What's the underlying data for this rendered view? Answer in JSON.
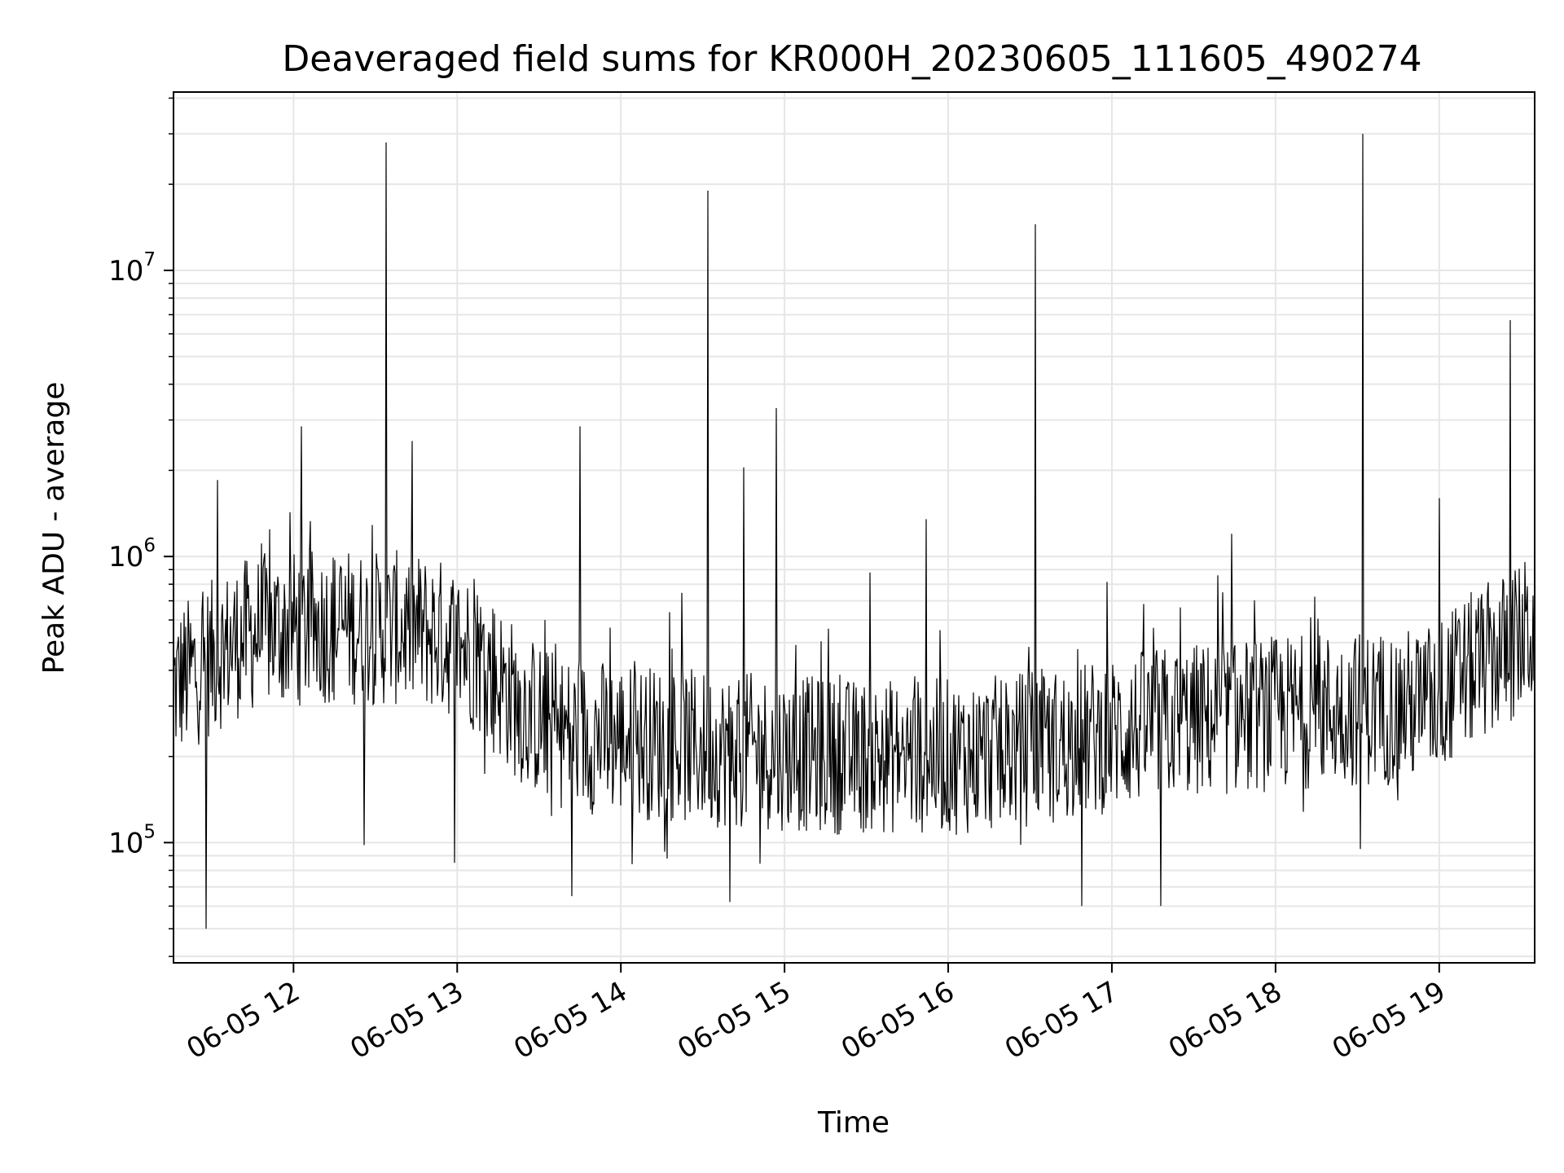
{
  "chart_data": {
    "type": "line",
    "title": "Deaveraged field sums for KR000H_20230605_111605_490274",
    "xlabel": "Time",
    "ylabel": "Peak ADU - average",
    "yscale": "log",
    "grid": true,
    "legend": "none",
    "line_color": "#000000",
    "grid_color": "#e6e6e6",
    "xlim": [
      "2023-06-05 11:16",
      "2023-06-05 19:35"
    ],
    "ylim": [
      38000,
      42000000
    ],
    "x_ticks": [
      {
        "label": "06-05 12",
        "value": "2023-06-05 12:00"
      },
      {
        "label": "06-05 13",
        "value": "2023-06-05 13:00"
      },
      {
        "label": "06-05 14",
        "value": "2023-06-05 14:00"
      },
      {
        "label": "06-05 15",
        "value": "2023-06-05 15:00"
      },
      {
        "label": "06-05 16",
        "value": "2023-06-05 16:00"
      },
      {
        "label": "06-05 17",
        "value": "2023-06-05 17:00"
      },
      {
        "label": "06-05 18",
        "value": "2023-06-05 18:00"
      },
      {
        "label": "06-05 19",
        "value": "2023-06-05 19:00"
      }
    ],
    "y_ticks": [
      {
        "base": "10",
        "exp": "5",
        "value": 100000
      },
      {
        "base": "10",
        "exp": "6",
        "value": 1000000
      },
      {
        "base": "10",
        "exp": "7",
        "value": 10000000
      }
    ],
    "series": [
      {
        "x": [
          "2023-06-05 11:16",
          "2023-06-05 11:25",
          "2023-06-05 11:34",
          "2023-06-05 11:43",
          "2023-06-05 11:52",
          "2023-06-05 12:02",
          "2023-06-05 12:11",
          "2023-06-05 12:20",
          "2023-06-05 12:29",
          "2023-06-05 12:38",
          "2023-06-05 12:47",
          "2023-06-05 12:56",
          "2023-06-05 13:05",
          "2023-06-05 13:14",
          "2023-06-05 13:23",
          "2023-06-05 13:32",
          "2023-06-05 13:41",
          "2023-06-05 13:50",
          "2023-06-05 14:00",
          "2023-06-05 14:09",
          "2023-06-05 14:18",
          "2023-06-05 14:27",
          "2023-06-05 14:36",
          "2023-06-05 14:45",
          "2023-06-05 14:54",
          "2023-06-05 15:03",
          "2023-06-05 15:12",
          "2023-06-05 15:21",
          "2023-06-05 15:30",
          "2023-06-05 15:39",
          "2023-06-05 15:48",
          "2023-06-05 15:57",
          "2023-06-05 16:07",
          "2023-06-05 16:16",
          "2023-06-05 16:25",
          "2023-06-05 16:34",
          "2023-06-05 16:43",
          "2023-06-05 16:52",
          "2023-06-05 17:01",
          "2023-06-05 17:10",
          "2023-06-05 17:19",
          "2023-06-05 17:28",
          "2023-06-05 17:37",
          "2023-06-05 17:46",
          "2023-06-05 17:55",
          "2023-06-05 18:05",
          "2023-06-05 18:14",
          "2023-06-05 18:23",
          "2023-06-05 18:32",
          "2023-06-05 18:41",
          "2023-06-05 18:50",
          "2023-06-05 18:59",
          "2023-06-05 19:08",
          "2023-06-05 19:17",
          "2023-06-05 19:26",
          "2023-06-05 19:35"
        ],
        "y": [
          350000,
          410000,
          470000,
          530000,
          560000,
          560000,
          570000,
          570000,
          560000,
          560000,
          550000,
          520000,
          470000,
          380000,
          300000,
          260000,
          240000,
          235000,
          230000,
          225000,
          220000,
          215000,
          212000,
          210000,
          208000,
          205000,
          203000,
          200000,
          200000,
          200000,
          200000,
          200000,
          200000,
          205000,
          210000,
          215000,
          220000,
          230000,
          240000,
          250000,
          260000,
          265000,
          270000,
          275000,
          280000,
          285000,
          290000,
          292000,
          295000,
          298000,
          300000,
          320000,
          380000,
          430000,
          480000,
          560000
        ]
      }
    ],
    "spikes": [
      {
        "x": "2023-06-05 11:32",
        "y": 1850000
      },
      {
        "x": "2023-06-05 12:03",
        "y": 2850000
      },
      {
        "x": "2023-06-05 12:34",
        "y": 28000000
      },
      {
        "x": "2023-06-05 13:45",
        "y": 2850000
      },
      {
        "x": "2023-06-05 14:32",
        "y": 19000000
      },
      {
        "x": "2023-06-05 14:45",
        "y": 2050000
      },
      {
        "x": "2023-06-05 14:57",
        "y": 3300000
      },
      {
        "x": "2023-06-05 15:52",
        "y": 1350000
      },
      {
        "x": "2023-06-05 16:32",
        "y": 14500000
      },
      {
        "x": "2023-06-05 17:44",
        "y": 1200000
      },
      {
        "x": "2023-06-05 18:32",
        "y": 30000000
      },
      {
        "x": "2023-06-05 19:00",
        "y": 1600000
      },
      {
        "x": "2023-06-05 19:26",
        "y": 6700000
      }
    ],
    "dips": [
      {
        "x": "2023-06-05 11:28",
        "y": 50000
      },
      {
        "x": "2023-06-05 12:26",
        "y": 98000
      },
      {
        "x": "2023-06-05 12:59",
        "y": 85000
      },
      {
        "x": "2023-06-05 13:42",
        "y": 65000
      },
      {
        "x": "2023-06-05 14:40",
        "y": 62000
      },
      {
        "x": "2023-06-05 16:49",
        "y": 60000
      },
      {
        "x": "2023-06-05 17:18",
        "y": 60000
      },
      {
        "x": "2023-06-05 18:31",
        "y": 95000
      }
    ]
  }
}
